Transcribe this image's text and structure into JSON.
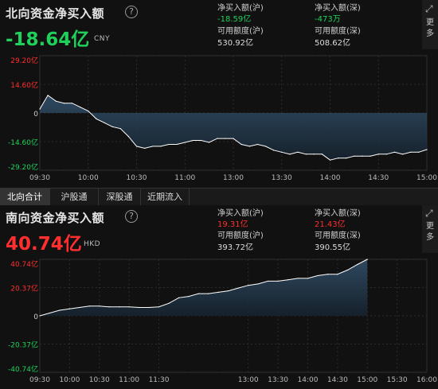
{
  "north": {
    "title": "北向资金净买入额",
    "value": "-18.64亿",
    "currency": "CNY",
    "net_buy_sh_label": "净买入额(沪)",
    "net_buy_sh_value": "-18.59亿",
    "net_buy_sz_label": "净买入额(深)",
    "net_buy_sz_value": "-473万",
    "quota_sh_label": "可用额度(沪)",
    "quota_sh_value": "530.92亿",
    "quota_sz_label": "可用额度(深)",
    "quota_sz_value": "508.62亿",
    "more_label": "更多"
  },
  "south": {
    "title": "南向资金净买入额",
    "value": "40.74亿",
    "currency": "HKD",
    "net_buy_sh_label": "净买入额(沪)",
    "net_buy_sh_value": "19.31亿",
    "net_buy_sz_label": "净买入额(深)",
    "net_buy_sz_value": "21.43亿",
    "quota_sh_label": "可用额度(沪)",
    "quota_sh_value": "393.72亿",
    "quota_sz_label": "可用额度(深)",
    "quota_sz_value": "390.55亿",
    "more_label": "更多"
  },
  "tabs": [
    "北向合计",
    "沪股通",
    "深股通",
    "近期流入"
  ],
  "active_tab": 0,
  "colors": {
    "negative": "#1fd05a",
    "positive": "#ff2f2f",
    "line": "#ffffff",
    "fill_top": "#34536e",
    "fill_bottom": "#16232f"
  },
  "chart_data": [
    {
      "type": "area",
      "title": "北向资金净买入额",
      "y_tick_labels": [
        "29.20亿",
        "14.60亿",
        "0",
        "-14.60亿",
        "-29.20亿"
      ],
      "y_ticks": [
        29.2,
        14.6,
        0,
        -14.6,
        -29.2
      ],
      "ylim": [
        -29.2,
        29.2
      ],
      "x_tick_labels": [
        "09:30",
        "10:00",
        "10:30",
        "11:00",
        "13:00",
        "13:30",
        "14:00",
        "14:30",
        "15:00"
      ],
      "x": [
        "09:30",
        "09:35",
        "09:40",
        "09:45",
        "09:50",
        "09:55",
        "10:00",
        "10:05",
        "10:10",
        "10:15",
        "10:20",
        "10:25",
        "10:30",
        "10:35",
        "10:40",
        "10:45",
        "10:50",
        "10:55",
        "11:00",
        "11:05",
        "11:10",
        "11:15",
        "11:20",
        "11:25",
        "11:30",
        "13:05",
        "13:10",
        "13:15",
        "13:20",
        "13:25",
        "13:30",
        "13:35",
        "13:40",
        "13:45",
        "13:50",
        "13:55",
        "14:00",
        "14:05",
        "14:10",
        "14:15",
        "14:20",
        "14:25",
        "14:30",
        "14:35",
        "14:40",
        "14:45",
        "14:50",
        "14:55",
        "15:00"
      ],
      "values": [
        2,
        9,
        6,
        5,
        5,
        3,
        1,
        -3,
        -5,
        -7,
        -8,
        -12,
        -17,
        -18,
        -17,
        -17,
        -16,
        -16,
        -15,
        -14,
        -14,
        -15,
        -13,
        -13,
        -13,
        -16,
        -17,
        -16,
        -17,
        -19,
        -20,
        -21,
        -20,
        -21,
        -21,
        -21,
        -24,
        -23,
        -23,
        -22,
        -22,
        -22,
        -21,
        -21,
        -20,
        -21,
        -20,
        -20,
        -18.64
      ],
      "grid": true
    },
    {
      "type": "area",
      "title": "南向资金净买入额",
      "y_tick_labels": [
        "40.74亿",
        "20.37亿",
        "0",
        "-20.37亿",
        "-40.74亿"
      ],
      "y_ticks": [
        40.74,
        20.37,
        0,
        -20.37,
        -40.74
      ],
      "ylim": [
        -40.74,
        40.74
      ],
      "x_tick_labels": [
        "09:30",
        "10:00",
        "10:30",
        "11:00",
        "11:30",
        "13:00",
        "13:30",
        "14:00",
        "14:30",
        "15:00",
        "15:30",
        "16:00"
      ],
      "x": [
        "09:30",
        "09:40",
        "09:50",
        "10:00",
        "10:10",
        "10:20",
        "10:30",
        "10:40",
        "10:50",
        "11:00",
        "11:10",
        "11:20",
        "11:30",
        "11:40",
        "11:50",
        "12:00",
        "12:10",
        "12:20",
        "12:30",
        "12:40",
        "12:50",
        "13:00",
        "13:10",
        "13:20",
        "13:30",
        "13:40",
        "13:50",
        "14:00",
        "14:10",
        "14:20",
        "14:30",
        "14:40",
        "14:50",
        "15:00"
      ],
      "values": [
        0,
        2,
        4,
        5,
        6,
        7,
        7,
        6.5,
        6.5,
        6.5,
        6,
        6,
        6.5,
        9,
        13,
        14,
        16,
        16,
        17,
        18,
        20,
        22,
        23,
        25,
        25,
        26,
        27,
        27,
        29,
        30,
        30,
        33,
        37,
        40.74
      ],
      "grid": true
    }
  ]
}
